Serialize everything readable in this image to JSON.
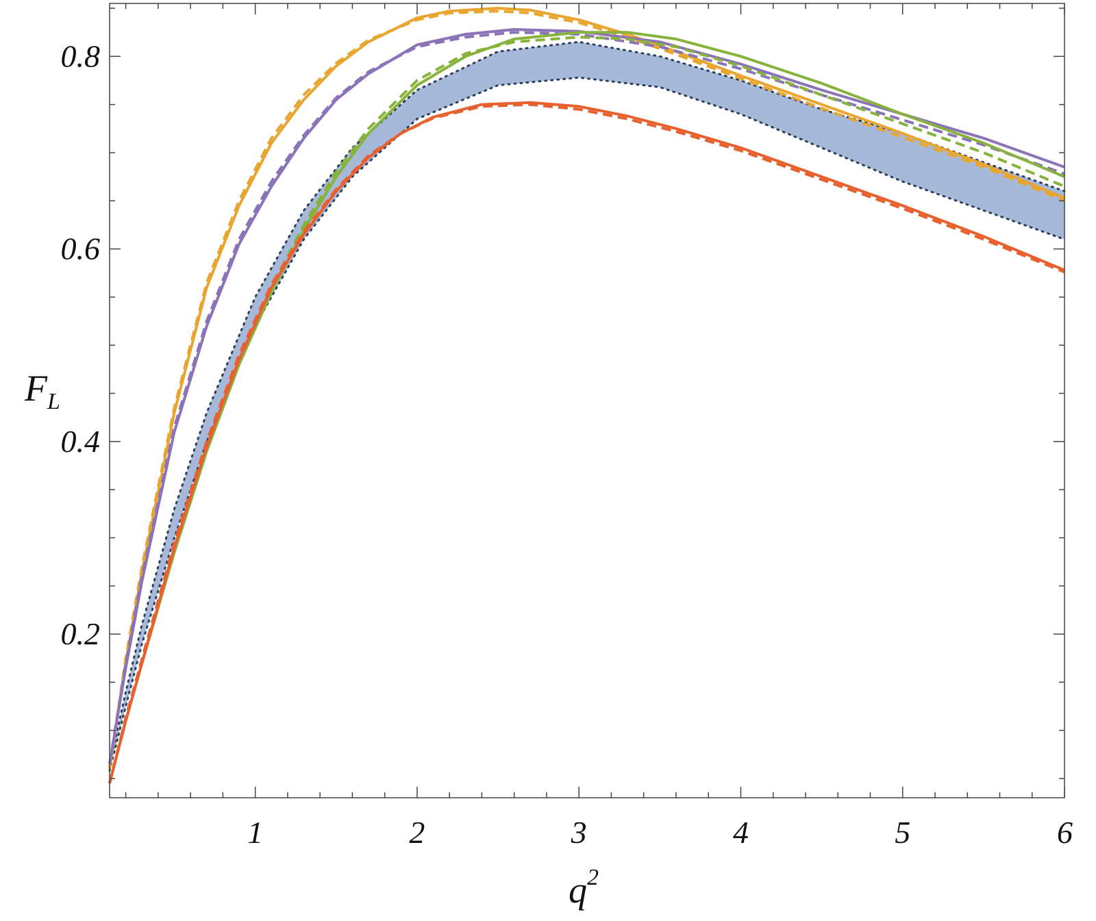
{
  "chart_data": {
    "type": "line",
    "title": "",
    "xlabel": {
      "base": "q",
      "sup": "2"
    },
    "ylabel": {
      "base": "F",
      "sub": "L"
    },
    "xlim": [
      0.1,
      6.0
    ],
    "ylim": [
      0.03,
      0.855
    ],
    "x_ticks": [
      {
        "value": 1,
        "label": "1"
      },
      {
        "value": 2,
        "label": "2"
      },
      {
        "value": 3,
        "label": "3"
      },
      {
        "value": 4,
        "label": "4"
      },
      {
        "value": 5,
        "label": "5"
      },
      {
        "value": 6,
        "label": "6"
      }
    ],
    "y_ticks": [
      {
        "value": 0.2,
        "label": "0.2"
      },
      {
        "value": 0.4,
        "label": "0.4"
      },
      {
        "value": 0.6,
        "label": "0.6"
      },
      {
        "value": 0.8,
        "label": "0.8"
      }
    ],
    "x_minor_step": 0.2,
    "y_minor_step": 0.05,
    "grid": false,
    "legend": "none",
    "band": {
      "color": "#a7b9d8",
      "edge_color": "#2b3f5c",
      "x": [
        0.1,
        0.2,
        0.3,
        0.5,
        0.7,
        1.0,
        1.3,
        1.6,
        2.0,
        2.5,
        3.0,
        3.5,
        4.0,
        4.5,
        5.0,
        5.5,
        6.0
      ],
      "upper": [
        0.063,
        0.14,
        0.21,
        0.33,
        0.43,
        0.55,
        0.64,
        0.705,
        0.765,
        0.805,
        0.815,
        0.8,
        0.775,
        0.745,
        0.72,
        0.69,
        0.66
      ],
      "lower": [
        0.058,
        0.125,
        0.19,
        0.3,
        0.4,
        0.52,
        0.61,
        0.675,
        0.735,
        0.77,
        0.778,
        0.768,
        0.74,
        0.705,
        0.67,
        0.64,
        0.61
      ]
    },
    "series": [
      {
        "color": "#e8a52f",
        "x": [
          0.1,
          0.2,
          0.3,
          0.5,
          0.7,
          0.9,
          1.1,
          1.3,
          1.5,
          1.7,
          2.0,
          2.2,
          2.5,
          2.7,
          3.0,
          3.3,
          3.6,
          4.0,
          4.5,
          5.0,
          5.5,
          6.0
        ],
        "solid": [
          0.06,
          0.17,
          0.265,
          0.43,
          0.56,
          0.645,
          0.71,
          0.755,
          0.79,
          0.815,
          0.84,
          0.847,
          0.85,
          0.848,
          0.838,
          0.823,
          0.805,
          0.78,
          0.75,
          0.72,
          0.688,
          0.653
        ],
        "dashed": [
          0.06,
          0.175,
          0.27,
          0.435,
          0.565,
          0.65,
          0.715,
          0.76,
          0.793,
          0.817,
          0.838,
          0.845,
          0.847,
          0.845,
          0.835,
          0.82,
          0.802,
          0.777,
          0.746,
          0.716,
          0.685,
          0.65
        ]
      },
      {
        "color": "#8b73b8",
        "x": [
          0.1,
          0.2,
          0.3,
          0.5,
          0.7,
          0.9,
          1.1,
          1.3,
          1.5,
          1.7,
          2.0,
          2.3,
          2.6,
          3.0,
          3.5,
          4.0,
          4.5,
          5.0,
          5.5,
          6.0
        ],
        "solid": [
          0.065,
          0.165,
          0.255,
          0.41,
          0.52,
          0.605,
          0.665,
          0.715,
          0.755,
          0.782,
          0.812,
          0.823,
          0.828,
          0.826,
          0.815,
          0.792,
          0.765,
          0.74,
          0.715,
          0.685
        ],
        "dashed": [
          0.065,
          0.17,
          0.26,
          0.415,
          0.525,
          0.61,
          0.67,
          0.718,
          0.757,
          0.784,
          0.81,
          0.82,
          0.825,
          0.823,
          0.81,
          0.787,
          0.76,
          0.734,
          0.708,
          0.678
        ]
      },
      {
        "color": "#87b23b",
        "x": [
          0.1,
          0.2,
          0.3,
          0.5,
          0.7,
          0.9,
          1.1,
          1.3,
          1.5,
          1.7,
          2.0,
          2.3,
          2.6,
          3.0,
          3.3,
          3.6,
          4.0,
          4.5,
          5.0,
          5.5,
          6.0
        ],
        "solid": [
          0.045,
          0.11,
          0.17,
          0.285,
          0.39,
          0.48,
          0.555,
          0.62,
          0.675,
          0.72,
          0.77,
          0.8,
          0.818,
          0.825,
          0.825,
          0.818,
          0.8,
          0.772,
          0.74,
          0.71,
          0.675
        ],
        "dashed": [
          0.045,
          0.11,
          0.17,
          0.285,
          0.39,
          0.485,
          0.56,
          0.625,
          0.68,
          0.725,
          0.775,
          0.803,
          0.815,
          0.82,
          0.818,
          0.81,
          0.79,
          0.76,
          0.73,
          0.7,
          0.665
        ]
      },
      {
        "color": "#e9602f",
        "x": [
          0.1,
          0.2,
          0.3,
          0.5,
          0.7,
          0.9,
          1.1,
          1.3,
          1.5,
          1.7,
          1.9,
          2.1,
          2.4,
          2.7,
          3.0,
          3.3,
          3.6,
          4.0,
          4.5,
          5.0,
          5.5,
          6.0
        ],
        "solid": [
          0.045,
          0.11,
          0.17,
          0.29,
          0.395,
          0.485,
          0.56,
          0.615,
          0.66,
          0.695,
          0.72,
          0.737,
          0.75,
          0.752,
          0.748,
          0.738,
          0.725,
          0.705,
          0.675,
          0.645,
          0.613,
          0.578
        ],
        "dashed": [
          0.045,
          0.113,
          0.174,
          0.295,
          0.4,
          0.49,
          0.563,
          0.618,
          0.662,
          0.697,
          0.72,
          0.736,
          0.748,
          0.75,
          0.745,
          0.735,
          0.722,
          0.702,
          0.672,
          0.642,
          0.61,
          0.576
        ]
      }
    ]
  }
}
